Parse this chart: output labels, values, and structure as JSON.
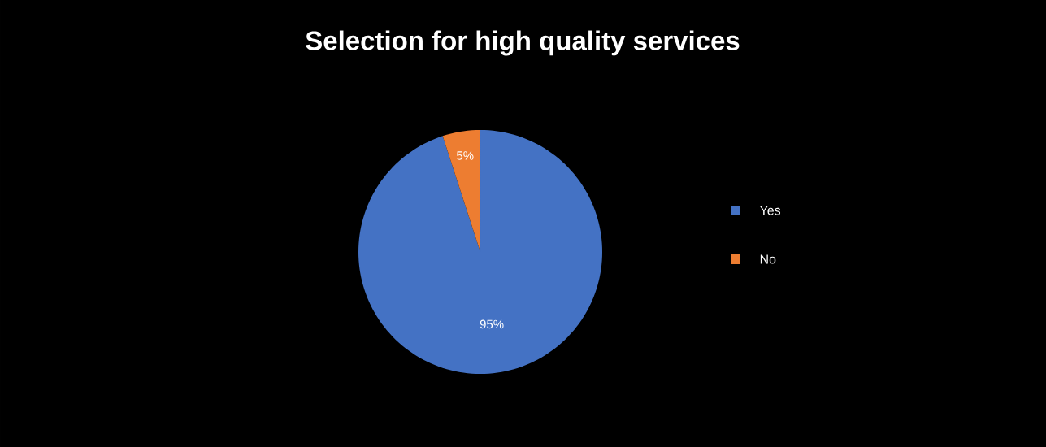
{
  "chart_data": {
    "type": "pie",
    "title": "Selection for high quality services",
    "categories": [
      "Yes",
      "No"
    ],
    "values": [
      95,
      5
    ],
    "colors": [
      "#4472c4",
      "#ed7d31"
    ],
    "value_labels": [
      "95%",
      "5%"
    ],
    "legend": "right"
  }
}
